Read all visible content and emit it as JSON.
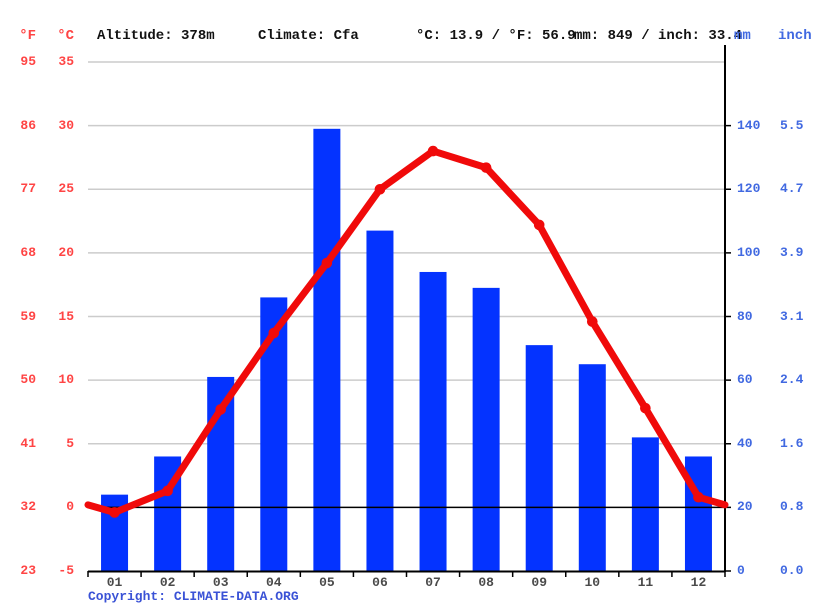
{
  "header": {
    "f_unit": "°F",
    "c_unit": "°C",
    "altitude": "Altitude: 378m",
    "climate": "Climate: Cfa",
    "temp_summary": "°C: 13.9 / °F: 56.9",
    "precip_summary": "mm: 849 / inch: 33.4",
    "mm_unit": "mm",
    "inch_unit": "inch"
  },
  "footer": {
    "copyright_prefix": "Copyright: ",
    "copyright_link": "CLIMATE-DATA.ORG"
  },
  "chart_data": {
    "type": [
      "bar",
      "line"
    ],
    "categories": [
      "01",
      "02",
      "03",
      "04",
      "05",
      "06",
      "07",
      "08",
      "09",
      "10",
      "11",
      "12"
    ],
    "series": [
      {
        "name": "precipitation_mm",
        "type": "bar",
        "values": [
          24,
          36,
          61,
          86,
          139,
          107,
          94,
          89,
          71,
          65,
          42,
          36
        ]
      },
      {
        "name": "temperature_c",
        "type": "line",
        "values": [
          -0.4,
          1.3,
          7.7,
          13.7,
          19.2,
          25.0,
          28.0,
          26.7,
          22.2,
          14.6,
          7.8,
          0.8
        ]
      }
    ],
    "temp_axis": {
      "c_ticks": [
        "35",
        "30",
        "25",
        "20",
        "15",
        "10",
        "5",
        "0",
        "-5"
      ],
      "c_tick_values": [
        35,
        30,
        25,
        20,
        15,
        10,
        5,
        0,
        -5
      ],
      "f_ticks": [
        "95",
        "86",
        "77",
        "68",
        "59",
        "50",
        "41",
        "32",
        "23"
      ],
      "range_c": [
        -5,
        35
      ],
      "zero_line_c": 0
    },
    "precip_axis": {
      "mm_ticks": [
        "140",
        "120",
        "100",
        "80",
        "60",
        "40",
        "20",
        "0"
      ],
      "mm_tick_values": [
        140,
        120,
        100,
        80,
        60,
        40,
        20,
        0
      ],
      "inch_ticks": [
        "5.5",
        "4.7",
        "3.9",
        "3.1",
        "2.4",
        "1.6",
        "0.8",
        "0.0"
      ],
      "range_mm": [
        0,
        160
      ]
    },
    "grid": true,
    "legend": "none",
    "annual_mean_temp_c": 13.9,
    "annual_precip_mm": 849
  },
  "colors": {
    "bar": "#0433ff",
    "line": "#f00a0a",
    "temp_label": "#ff4444",
    "precip_label": "#4169e1",
    "grid": "#cccccc",
    "axis": "#000000",
    "month_label": "#4a4a4a",
    "copyright": "#3a52d6"
  }
}
